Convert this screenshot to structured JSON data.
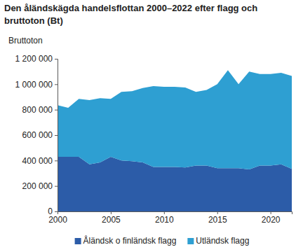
{
  "chart_data": {
    "type": "area",
    "title": "Den åländskägda handelsflottan 2000–2022 efter flagg och bruttoton (Bt)",
    "y_label": "Bruttoton",
    "stacked": true,
    "grid": false,
    "legend": "bottom",
    "x": [
      2000,
      2001,
      2002,
      2003,
      2004,
      2005,
      2006,
      2007,
      2008,
      2009,
      2010,
      2011,
      2012,
      2013,
      2014,
      2015,
      2016,
      2017,
      2018,
      2019,
      2020,
      2021,
      2022
    ],
    "xlim": [
      2000,
      2022
    ],
    "xticks": [
      2000,
      2005,
      2010,
      2015,
      2020
    ],
    "ylim": [
      0,
      1200000
    ],
    "yticks": [
      0,
      {
        "value": 200000,
        "label": "200 000"
      },
      {
        "value": 400000,
        "label": "400 000"
      },
      {
        "value": 600000,
        "label": "600 000"
      },
      {
        "value": 800000,
        "label": "800 000"
      },
      {
        "value": 1000000,
        "label": "1 000 000"
      },
      {
        "value": 1200000,
        "label": "1 200 000"
      }
    ],
    "series": [
      {
        "name": "Åländsk o finländsk flagg",
        "color": "#2c5ca8",
        "values": [
          430000,
          430000,
          430000,
          370000,
          385000,
          430000,
          400000,
          395000,
          385000,
          350000,
          350000,
          350000,
          345000,
          360000,
          360000,
          340000,
          340000,
          340000,
          330000,
          360000,
          360000,
          370000,
          335000
        ]
      },
      {
        "name": "Utländsk flagg",
        "color": "#2e9fd2",
        "values": [
          405000,
          385000,
          455000,
          505000,
          505000,
          455000,
          540000,
          550000,
          585000,
          635000,
          630000,
          630000,
          630000,
          580000,
          595000,
          660000,
          770000,
          660000,
          770000,
          720000,
          720000,
          720000,
          730000
        ]
      }
    ]
  }
}
